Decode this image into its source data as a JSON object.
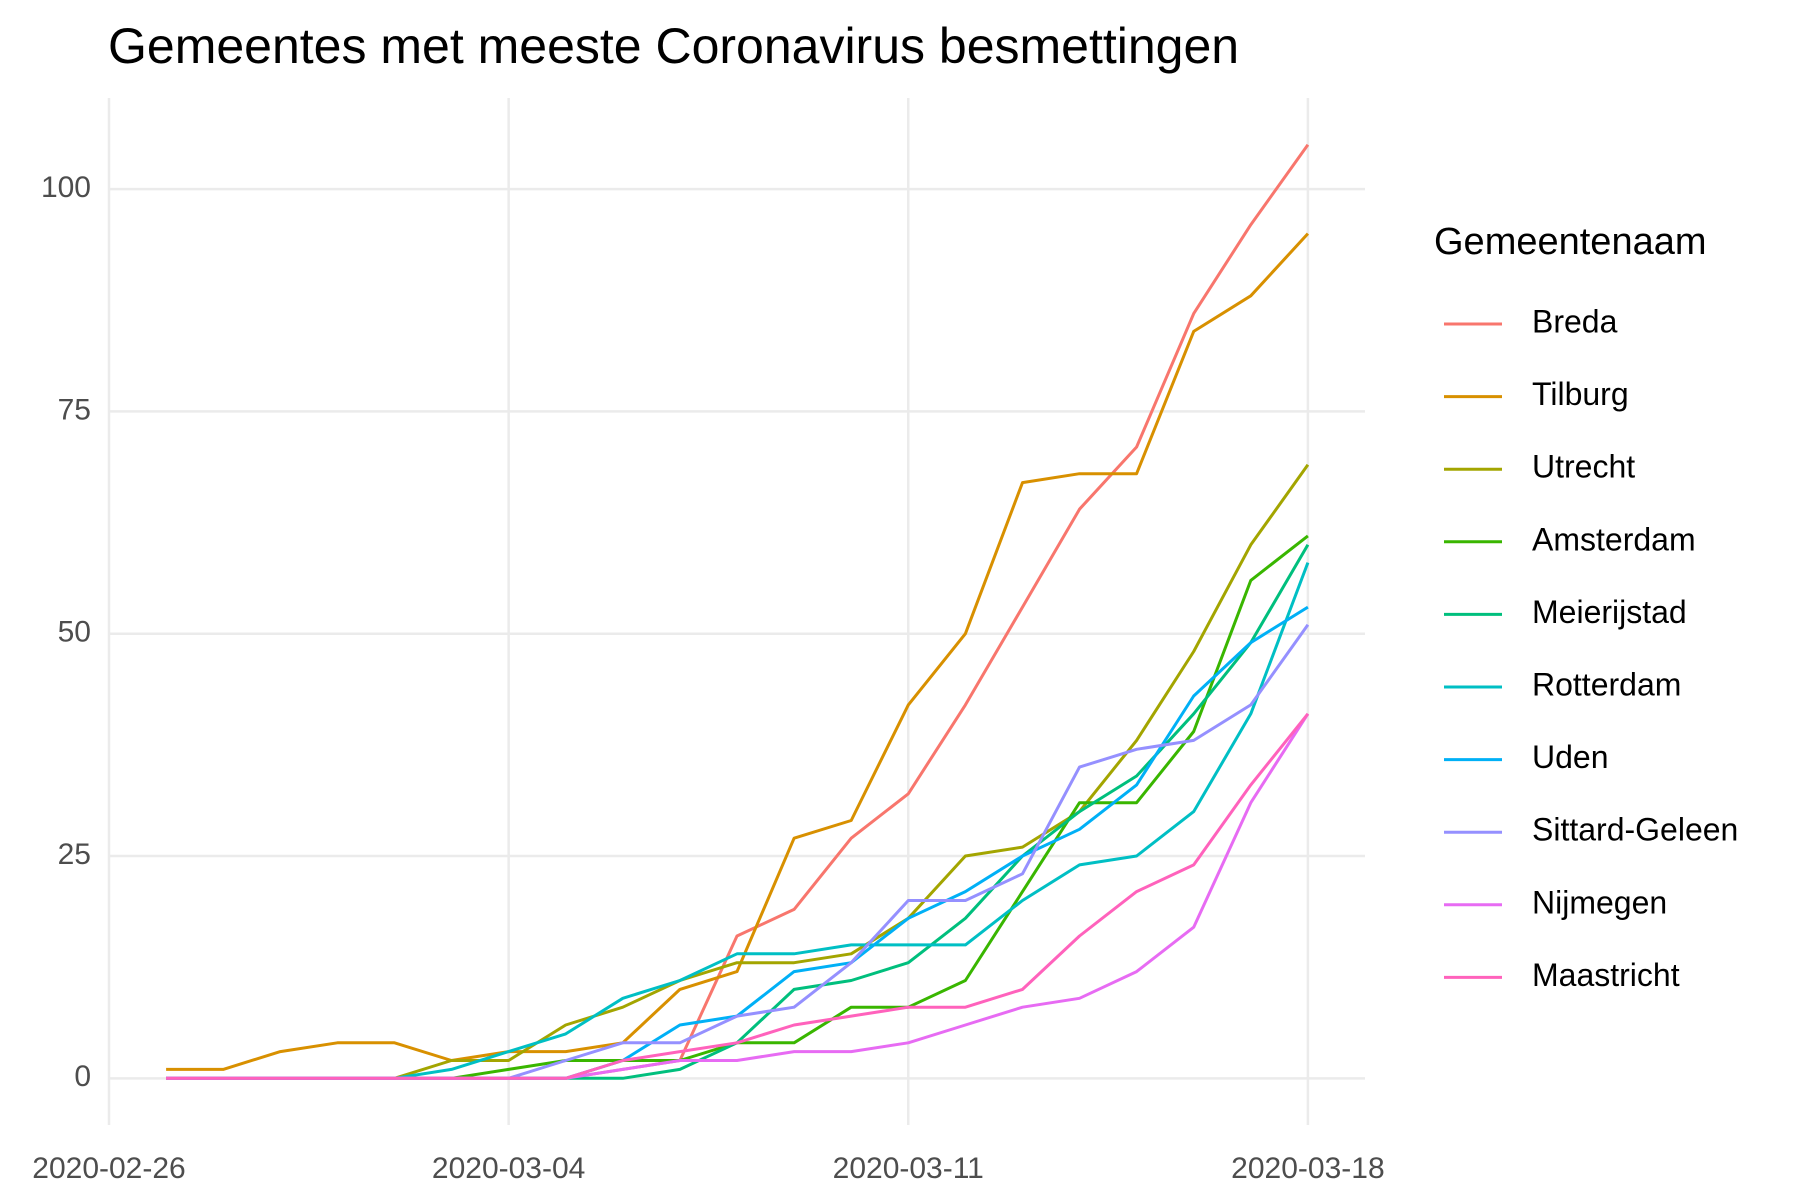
{
  "chart_data": {
    "type": "line",
    "title": "Gemeentes met meeste Coronavirus besmettingen",
    "legend_title": "Gemeentenaam",
    "legend_position": "right",
    "grid": true,
    "x": [
      "2020-02-27",
      "2020-02-28",
      "2020-02-29",
      "2020-03-01",
      "2020-03-02",
      "2020-03-03",
      "2020-03-04",
      "2020-03-05",
      "2020-03-06",
      "2020-03-07",
      "2020-03-08",
      "2020-03-09",
      "2020-03-10",
      "2020-03-11",
      "2020-03-12",
      "2020-03-13",
      "2020-03-14",
      "2020-03-15",
      "2020-03-16",
      "2020-03-17",
      "2020-03-18"
    ],
    "xlim": [
      "2020-02-26",
      "2020-03-19"
    ],
    "xticks": [
      "2020-02-26",
      "2020-03-04",
      "2020-03-11",
      "2020-03-18"
    ],
    "ylim": [
      -5.25,
      110.25
    ],
    "yticks": [
      0,
      25,
      50,
      75,
      100
    ],
    "series": [
      {
        "name": "Breda",
        "color": "#F8766D",
        "values": [
          0,
          0,
          0,
          0,
          0,
          0,
          0,
          0,
          1,
          2,
          16,
          19,
          27,
          32,
          42,
          53,
          64,
          71,
          86,
          96,
          105
        ]
      },
      {
        "name": "Tilburg",
        "color": "#D89000",
        "values": [
          1,
          1,
          3,
          4,
          4,
          2,
          3,
          3,
          4,
          10,
          12,
          27,
          29,
          42,
          50,
          67,
          68,
          68,
          84,
          88,
          95
        ]
      },
      {
        "name": "Utrecht",
        "color": "#A3A500",
        "values": [
          0,
          0,
          0,
          0,
          0,
          2,
          2,
          6,
          8,
          11,
          13,
          13,
          14,
          18,
          25,
          26,
          30,
          38,
          48,
          60,
          69
        ]
      },
      {
        "name": "Amsterdam",
        "color": "#39B600",
        "values": [
          0,
          0,
          0,
          0,
          0,
          0,
          1,
          2,
          2,
          2,
          4,
          4,
          8,
          8,
          11,
          21,
          31,
          31,
          39,
          56,
          61
        ]
      },
      {
        "name": "Meierijstad",
        "color": "#00BF7D",
        "values": [
          0,
          0,
          0,
          0,
          0,
          0,
          0,
          0,
          0,
          1,
          4,
          10,
          11,
          13,
          18,
          25,
          30,
          34,
          41,
          49,
          60
        ]
      },
      {
        "name": "Rotterdam",
        "color": "#00BFC4",
        "values": [
          0,
          0,
          0,
          0,
          0,
          1,
          3,
          5,
          9,
          11,
          14,
          14,
          15,
          15,
          15,
          20,
          24,
          25,
          30,
          41,
          58
        ]
      },
      {
        "name": "Uden",
        "color": "#00B0F6",
        "values": [
          0,
          0,
          0,
          0,
          0,
          0,
          0,
          0,
          2,
          6,
          7,
          12,
          13,
          18,
          21,
          25,
          28,
          33,
          43,
          49,
          53
        ]
      },
      {
        "name": "Sittard-Geleen",
        "color": "#9590FF",
        "values": [
          0,
          0,
          0,
          0,
          0,
          0,
          0,
          2,
          4,
          4,
          7,
          8,
          13,
          20,
          20,
          23,
          35,
          37,
          38,
          42,
          51
        ]
      },
      {
        "name": "Nijmegen",
        "color": "#E76BF3",
        "values": [
          0,
          0,
          0,
          0,
          0,
          0,
          0,
          0,
          1,
          2,
          2,
          3,
          3,
          4,
          6,
          8,
          9,
          12,
          17,
          31,
          41
        ]
      },
      {
        "name": "Maastricht",
        "color": "#FF62BC",
        "values": [
          0,
          0,
          0,
          0,
          0,
          0,
          0,
          0,
          2,
          3,
          4,
          6,
          7,
          8,
          8,
          10,
          16,
          21,
          24,
          33,
          41
        ]
      }
    ]
  }
}
